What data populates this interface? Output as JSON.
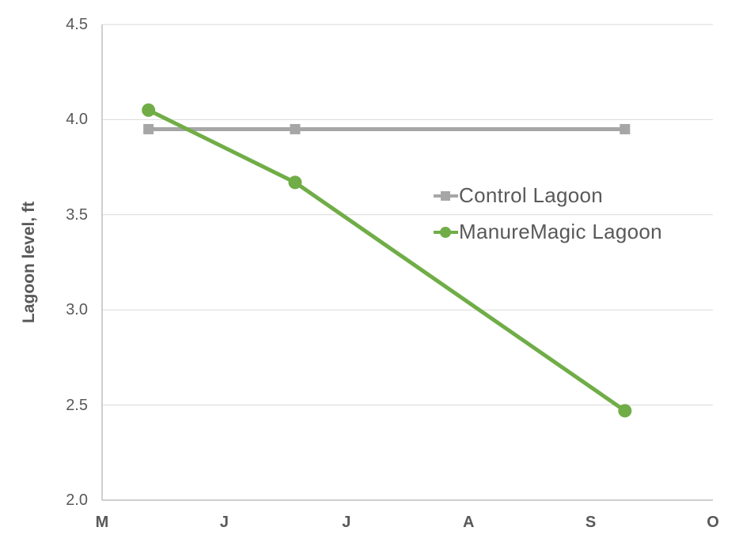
{
  "chart_data": {
    "type": "line",
    "title": "",
    "xlabel": "",
    "ylabel": "Lagoon level, ft",
    "ylim": [
      2.0,
      4.5
    ],
    "y_tick_labels": [
      "2.0",
      "2.5",
      "3.0",
      "3.5",
      "4.0",
      "4.5"
    ],
    "x_tick_labels": [
      "M",
      "J",
      "J",
      "A",
      "S",
      "O"
    ],
    "x_unit": "months, M=May tick at left edge (0) through O=October tick at right edge (5)",
    "xlim_months": [
      0,
      5
    ],
    "grid": true,
    "legend_position": "center-right, transparent, no border",
    "series": [
      {
        "name": "Control Lagoon",
        "color": "#a6a6a6",
        "marker": "square",
        "x_months": [
          0.38,
          1.58,
          4.28
        ],
        "values": [
          3.95,
          3.95,
          3.95
        ]
      },
      {
        "name": "ManureMagic Lagoon",
        "color": "#70ad47",
        "marker": "circle",
        "x_months": [
          0.38,
          1.58,
          4.28
        ],
        "values": [
          4.05,
          3.67,
          2.47
        ]
      }
    ],
    "colors": {
      "text": "#595959",
      "gridline": "#d9d9d9",
      "axis_line": "#bfbfbf",
      "background": "#ffffff"
    }
  }
}
